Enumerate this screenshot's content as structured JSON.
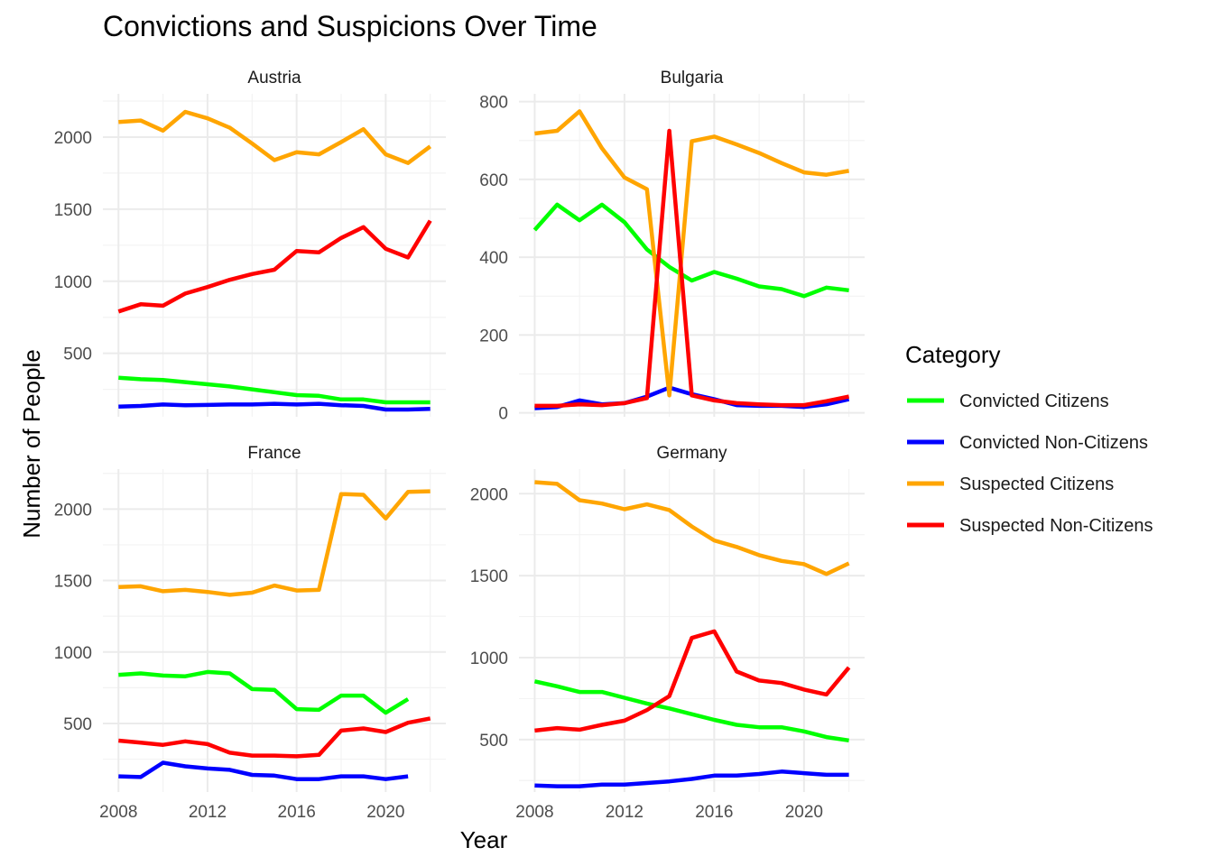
{
  "chart_data": {
    "type": "line",
    "title": "Convictions and Suspicions Over Time",
    "xlabel": "Year",
    "ylabel": "Number of People",
    "grid": true,
    "legend": {
      "title": "Category",
      "placement": "right",
      "entries": [
        {
          "name": "Convicted Citizens",
          "color": "#00ff00"
        },
        {
          "name": "Convicted Non-Citizens",
          "color": "#0000ff"
        },
        {
          "name": "Suspected Citizens",
          "color": "#ffa500"
        },
        {
          "name": "Suspected Non-Citizens",
          "color": "#ff0000"
        }
      ]
    },
    "x": [
      2008,
      2009,
      2010,
      2011,
      2012,
      2013,
      2014,
      2015,
      2016,
      2017,
      2018,
      2019,
      2020,
      2021,
      2022
    ],
    "x_ticks": [
      "2008",
      "2012",
      "2016",
      "2020"
    ],
    "panels": [
      {
        "name": "Austria",
        "ylim": [
          60,
          2300
        ],
        "y_ticks": [
          "500",
          "1000",
          "1500",
          "2000"
        ],
        "series": [
          {
            "name": "Convicted Citizens",
            "values": [
              330,
              320,
              315,
              300,
              285,
              270,
              250,
              230,
              210,
              205,
              180,
              180,
              160,
              160,
              160
            ]
          },
          {
            "name": "Convicted Non-Citizens",
            "values": [
              130,
              135,
              145,
              140,
              142,
              145,
              145,
              150,
              145,
              150,
              140,
              135,
              110,
              110,
              115
            ]
          },
          {
            "name": "Suspected Citizens",
            "values": [
              2105,
              2115,
              2045,
              2175,
              2130,
              2065,
              1955,
              1840,
              1895,
              1880,
              1965,
              2055,
              1880,
              1820,
              1935
            ]
          },
          {
            "name": "Suspected Non-Citizens",
            "values": [
              790,
              840,
              830,
              915,
              960,
              1010,
              1050,
              1080,
              1210,
              1200,
              1300,
              1375,
              1225,
              1165,
              1420
            ]
          }
        ]
      },
      {
        "name": "Bulgaria",
        "ylim": [
          -10,
          820
        ],
        "y_ticks": [
          "0",
          "200",
          "400",
          "600",
          "800"
        ],
        "series": [
          {
            "name": "Convicted Citizens",
            "values": [
              470,
              535,
              495,
              535,
              490,
              420,
              375,
              340,
              362,
              345,
              325,
              318,
              300,
              322,
              315
            ]
          },
          {
            "name": "Convicted Non-Citizens",
            "values": [
              12,
              15,
              32,
              22,
              25,
              42,
              65,
              48,
              35,
              20,
              18,
              18,
              15,
              22,
              35
            ]
          },
          {
            "name": "Suspected Citizens",
            "values": [
              718,
              725,
              775,
              680,
              605,
              575,
              45,
              698,
              710,
              690,
              668,
              642,
              618,
              612,
              622
            ]
          },
          {
            "name": "Suspected Non-Citizens",
            "values": [
              18,
              18,
              22,
              20,
              25,
              38,
              725,
              45,
              32,
              25,
              22,
              20,
              20,
              30,
              42
            ]
          }
        ]
      },
      {
        "name": "France",
        "ylim": [
          20,
          2280
        ],
        "y_ticks": [
          "500",
          "1000",
          "1500",
          "2000"
        ],
        "series": [
          {
            "name": "Convicted Citizens",
            "values": [
              840,
              850,
              835,
              830,
              860,
              850,
              740,
              735,
              600,
              595,
              695,
              695,
              575,
              670,
              null
            ]
          },
          {
            "name": "Convicted Non-Citizens",
            "values": [
              130,
              125,
              225,
              200,
              185,
              175,
              140,
              135,
              110,
              110,
              130,
              130,
              110,
              130,
              null
            ]
          },
          {
            "name": "Suspected Citizens",
            "values": [
              1455,
              1460,
              1425,
              1435,
              1420,
              1400,
              1415,
              1465,
              1430,
              1435,
              2105,
              2100,
              1935,
              2120,
              2125
            ]
          },
          {
            "name": "Suspected Non-Citizens",
            "values": [
              380,
              365,
              350,
              375,
              355,
              295,
              275,
              275,
              270,
              280,
              450,
              465,
              440,
              505,
              535
            ]
          }
        ]
      },
      {
        "name": "Germany",
        "ylim": [
          180,
          2150
        ],
        "y_ticks": [
          "500",
          "1000",
          "1500",
          "2000"
        ],
        "series": [
          {
            "name": "Convicted Citizens",
            "values": [
              855,
              825,
              790,
              790,
              755,
              720,
              690,
              655,
              620,
              590,
              575,
              575,
              550,
              515,
              495
            ]
          },
          {
            "name": "Convicted Non-Citizens",
            "values": [
              220,
              215,
              215,
              225,
              225,
              235,
              245,
              260,
              280,
              280,
              290,
              305,
              295,
              285,
              285
            ]
          },
          {
            "name": "Suspected Citizens",
            "values": [
              2070,
              2060,
              1960,
              1940,
              1905,
              1935,
              1900,
              1800,
              1715,
              1675,
              1625,
              1590,
              1570,
              1510,
              1575
            ]
          },
          {
            "name": "Suspected Non-Citizens",
            "values": [
              555,
              570,
              560,
              590,
              615,
              680,
              765,
              1120,
              1160,
              915,
              860,
              845,
              805,
              775,
              940
            ]
          }
        ]
      }
    ]
  }
}
